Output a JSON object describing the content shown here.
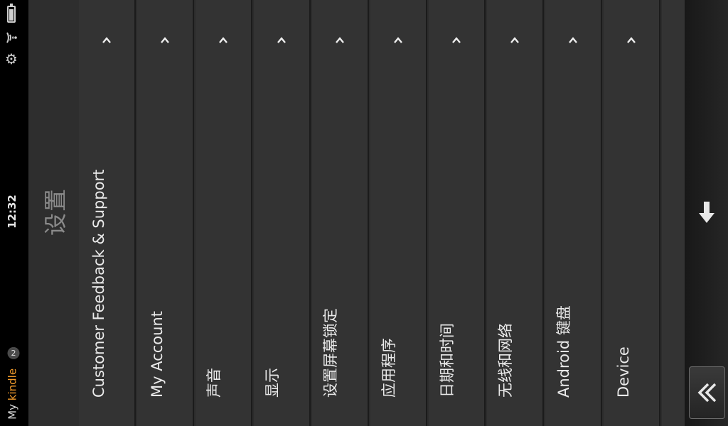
{
  "status_bar": {
    "time": "12:32",
    "brand_my": "My",
    "brand_kindle": "kindle",
    "notification_count": "2",
    "icons": [
      "battery-icon",
      "wifi-icon",
      "gear-icon"
    ]
  },
  "page": {
    "title": "设置"
  },
  "settings": {
    "items": [
      {
        "label": "Customer Feedback & Support"
      },
      {
        "label": "My Account"
      },
      {
        "label": "声音"
      },
      {
        "label": "显示"
      },
      {
        "label": "设置屏幕锁定"
      },
      {
        "label": "应用程序"
      },
      {
        "label": "日期和时间"
      },
      {
        "label": "无线和网络"
      },
      {
        "label": "Android 键盘"
      },
      {
        "label": "Device"
      }
    ]
  },
  "nav": {
    "icons": [
      "down-arrow-icon",
      "back-icon"
    ]
  },
  "colors": {
    "kindle_orange": "#f29b2b",
    "panel": "#333333",
    "divider": "#1b1b1b"
  }
}
